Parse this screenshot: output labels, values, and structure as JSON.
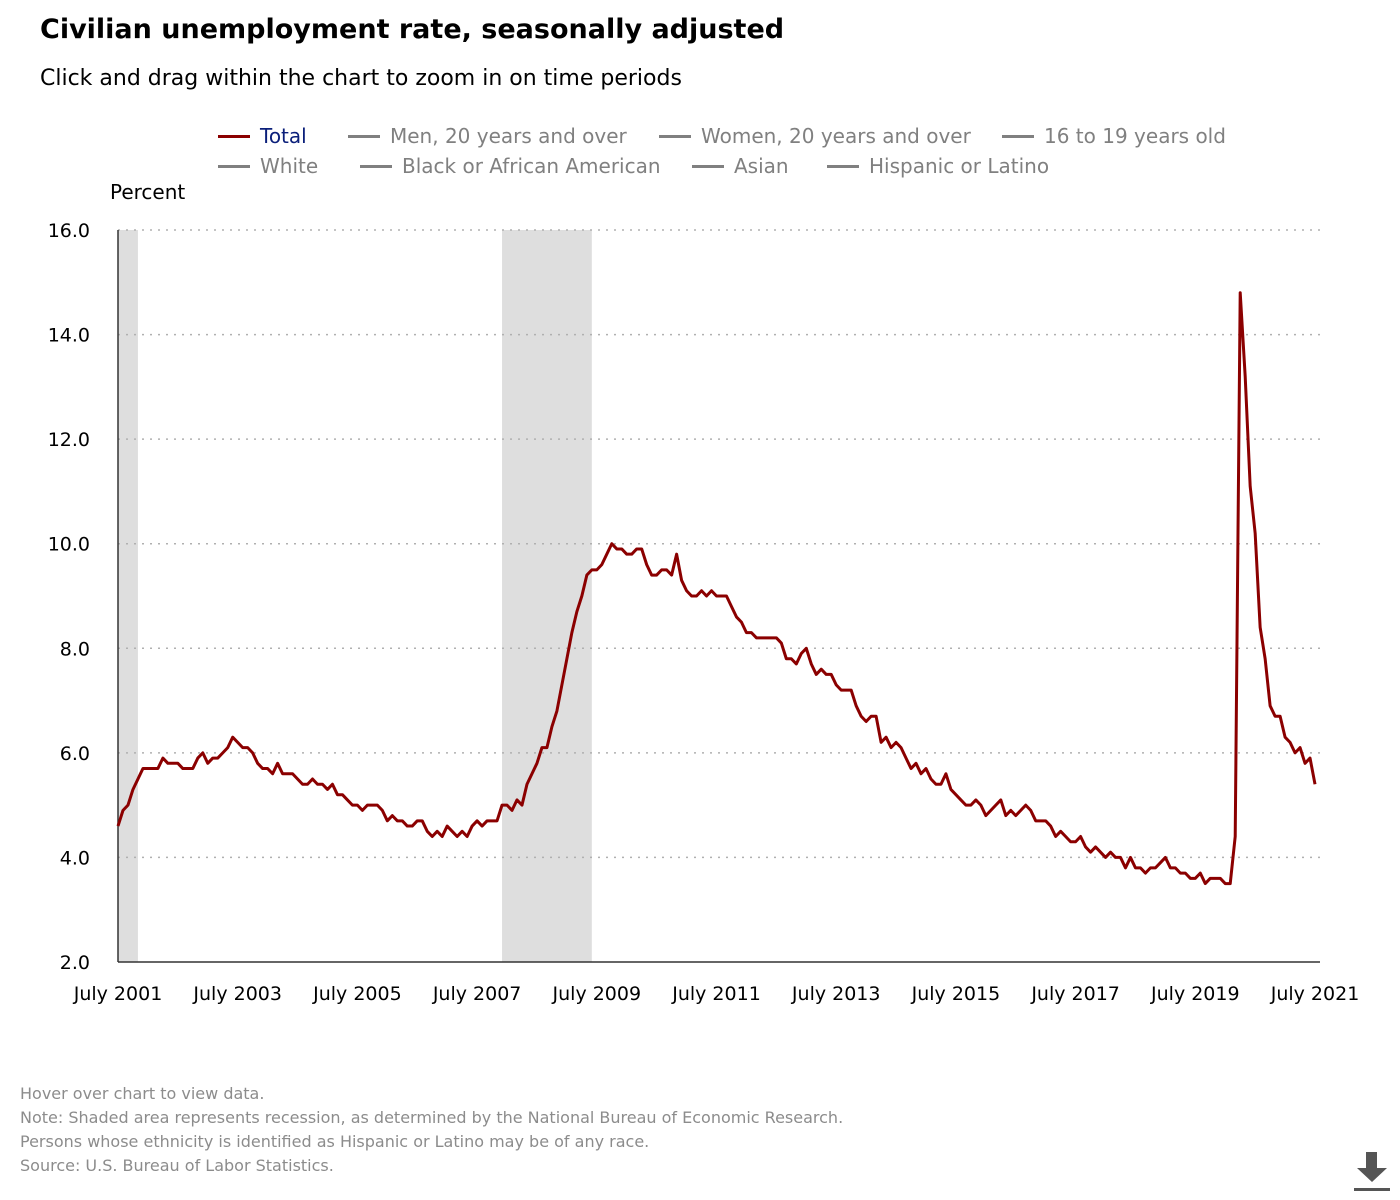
{
  "title": "Civilian unemployment rate, seasonally adjusted",
  "subtitle": "Click and drag within the chart to zoom in on time periods",
  "legend": {
    "row1": [
      {
        "label": "Total",
        "active": true
      },
      {
        "label": "Men, 20 years and over",
        "active": false
      },
      {
        "label": "Women, 20 years and over",
        "active": false
      },
      {
        "label": "16 to 19 years old",
        "active": false
      }
    ],
    "row2": [
      {
        "label": "White",
        "active": false
      },
      {
        "label": "Black or African American",
        "active": false
      },
      {
        "label": "Asian",
        "active": false
      },
      {
        "label": "Hispanic or Latino",
        "active": false
      }
    ]
  },
  "colors": {
    "total_line": "#8b0000",
    "inactive_legend": "#808080",
    "recession_shade": "#dedede",
    "grid": "#b0b0b0"
  },
  "notes": [
    "Hover over chart to view data.",
    "Note: Shaded area represents recession, as determined by the National Bureau of Economic Research.",
    "Persons whose ethnicity is identified as Hispanic or Latino may be of any race.",
    "Source: U.S. Bureau of Labor Statistics."
  ],
  "download_icon": "download-icon",
  "chart_data": {
    "type": "line",
    "title": "Civilian unemployment rate, seasonally adjusted",
    "ylabel": "Percent",
    "xlabel": "",
    "ylim": [
      2.0,
      16.0
    ],
    "xlim": [
      "2001-07",
      "2021-08"
    ],
    "yticks": [
      "2.0",
      "4.0",
      "6.0",
      "8.0",
      "10.0",
      "12.0",
      "14.0",
      "16.0"
    ],
    "xticks": [
      "July 2001",
      "July 2003",
      "July 2005",
      "July 2007",
      "July 2009",
      "July 2011",
      "July 2013",
      "July 2015",
      "July 2017",
      "July 2019",
      "July 2021"
    ],
    "grid": "horizontal dotted",
    "legend_position": "top",
    "recessions": [
      {
        "start": "2001-07",
        "end": "2001-11"
      },
      {
        "start": "2007-12",
        "end": "2009-06"
      }
    ],
    "series": [
      {
        "name": "Total",
        "start": "2001-07",
        "frequency": "monthly",
        "values": [
          4.6,
          4.9,
          5.0,
          5.3,
          5.5,
          5.7,
          5.7,
          5.7,
          5.7,
          5.9,
          5.8,
          5.8,
          5.8,
          5.7,
          5.7,
          5.7,
          5.9,
          6.0,
          5.8,
          5.9,
          5.9,
          6.0,
          6.1,
          6.3,
          6.2,
          6.1,
          6.1,
          6.0,
          5.8,
          5.7,
          5.7,
          5.6,
          5.8,
          5.6,
          5.6,
          5.6,
          5.5,
          5.4,
          5.4,
          5.5,
          5.4,
          5.4,
          5.3,
          5.4,
          5.2,
          5.2,
          5.1,
          5.0,
          5.0,
          4.9,
          5.0,
          5.0,
          5.0,
          4.9,
          4.7,
          4.8,
          4.7,
          4.7,
          4.6,
          4.6,
          4.7,
          4.7,
          4.5,
          4.4,
          4.5,
          4.4,
          4.6,
          4.5,
          4.4,
          4.5,
          4.4,
          4.6,
          4.7,
          4.6,
          4.7,
          4.7,
          4.7,
          5.0,
          5.0,
          4.9,
          5.1,
          5.0,
          5.4,
          5.6,
          5.8,
          6.1,
          6.1,
          6.5,
          6.8,
          7.3,
          7.8,
          8.3,
          8.7,
          9.0,
          9.4,
          9.5,
          9.5,
          9.6,
          9.8,
          10.0,
          9.9,
          9.9,
          9.8,
          9.8,
          9.9,
          9.9,
          9.6,
          9.4,
          9.4,
          9.5,
          9.5,
          9.4,
          9.8,
          9.3,
          9.1,
          9.0,
          9.0,
          9.1,
          9.0,
          9.1,
          9.0,
          9.0,
          9.0,
          8.8,
          8.6,
          8.5,
          8.3,
          8.3,
          8.2,
          8.2,
          8.2,
          8.2,
          8.2,
          8.1,
          7.8,
          7.8,
          7.7,
          7.9,
          8.0,
          7.7,
          7.5,
          7.6,
          7.5,
          7.5,
          7.3,
          7.2,
          7.2,
          7.2,
          6.9,
          6.7,
          6.6,
          6.7,
          6.7,
          6.2,
          6.3,
          6.1,
          6.2,
          6.1,
          5.9,
          5.7,
          5.8,
          5.6,
          5.7,
          5.5,
          5.4,
          5.4,
          5.6,
          5.3,
          5.2,
          5.1,
          5.0,
          5.0,
          5.1,
          5.0,
          4.8,
          4.9,
          5.0,
          5.1,
          4.8,
          4.9,
          4.8,
          4.9,
          5.0,
          4.9,
          4.7,
          4.7,
          4.7,
          4.6,
          4.4,
          4.5,
          4.4,
          4.3,
          4.3,
          4.4,
          4.2,
          4.1,
          4.2,
          4.1,
          4.0,
          4.1,
          4.0,
          4.0,
          3.8,
          4.0,
          3.8,
          3.8,
          3.7,
          3.8,
          3.8,
          3.9,
          4.0,
          3.8,
          3.8,
          3.7,
          3.7,
          3.6,
          3.6,
          3.7,
          3.5,
          3.6,
          3.6,
          3.6,
          3.5,
          3.5,
          4.4,
          14.8,
          13.2,
          11.1,
          10.2,
          8.4,
          7.8,
          6.9,
          6.7,
          6.7,
          6.3,
          6.2,
          6.0,
          6.1,
          5.8,
          5.9,
          5.4
        ]
      }
    ]
  }
}
